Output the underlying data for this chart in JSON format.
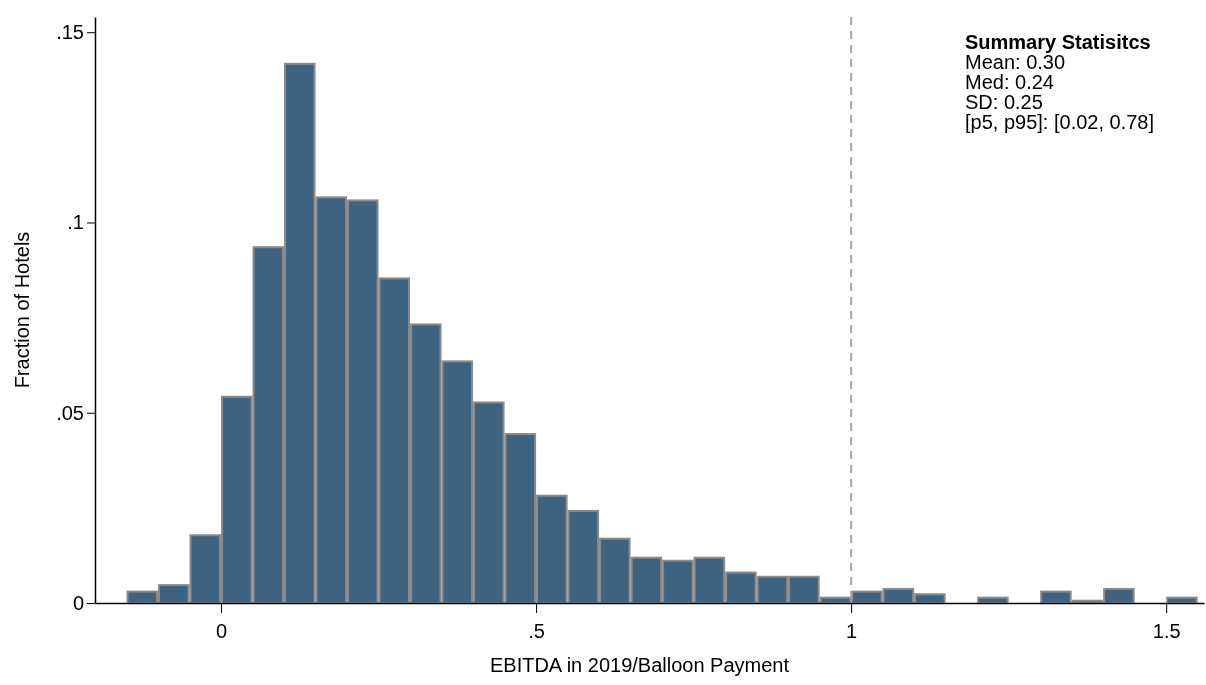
{
  "chart_data": {
    "type": "histogram",
    "xlabel": "EBITDA in 2019/Balloon Payment",
    "ylabel": "Fraction of Hotels",
    "bins": [
      -0.15,
      -0.1,
      -0.05,
      0,
      0.05,
      0.1,
      0.15,
      0.2,
      0.25,
      0.3,
      0.35,
      0.4,
      0.45,
      0.5,
      0.55,
      0.6,
      0.65,
      0.7,
      0.75,
      0.8,
      0.85,
      0.9,
      0.95,
      1.0,
      1.05,
      1.1,
      1.15,
      1.2,
      1.25,
      1.3,
      1.35,
      1.4,
      1.45,
      1.5,
      1.55
    ],
    "values": [
      0.003,
      0.0047,
      0.0178,
      0.0542,
      0.0935,
      0.1417,
      0.1066,
      0.1058,
      0.0853,
      0.0732,
      0.0635,
      0.0527,
      0.0444,
      0.0282,
      0.0242,
      0.0169,
      0.0119,
      0.0111,
      0.0119,
      0.008,
      0.0069,
      0.0069,
      0.0014,
      0.003,
      0.0037,
      0.0023,
      0,
      0.0014,
      0,
      0.003,
      0.0006,
      0.0037,
      0,
      0.0014
    ],
    "color": "#3e6380",
    "xlim": [
      -0.2,
      1.56
    ],
    "ylim": [
      0,
      0.154
    ],
    "xticks": [
      0,
      {
        "value": 0.5,
        "label": ".5"
      },
      1,
      1.5
    ],
    "yticks": [
      0,
      {
        "value": 0.05,
        "label": ".05"
      },
      {
        "value": 0.1,
        "label": ".1"
      },
      {
        "value": 0.15,
        "label": ".15"
      }
    ],
    "ref_lines": [
      {
        "axis": "x",
        "value": 1,
        "color": "#a6a6a6",
        "line_style": "dashed"
      }
    ],
    "annotations": [
      "Summary Statisitcs",
      "Mean: 0.30",
      "Med: 0.24",
      "SD: 0.25",
      "[p5, p95]: [0.02, 0.78]"
    ],
    "grid": false
  }
}
